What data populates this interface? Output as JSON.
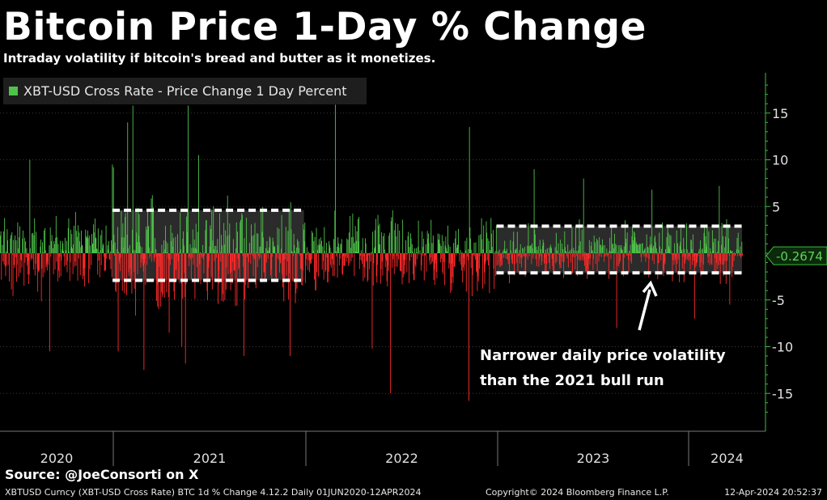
{
  "header": {
    "title": "Bitcoin Price 1-Day % Change",
    "subtitle": "Intraday volatility if bitcoin's bread and butter as it monetizes."
  },
  "chart_data": {
    "type": "bar",
    "series": [
      {
        "name": "XBT-USD Cross Rate - Price Change 1 Day Percent",
        "x_range": [
          "2020-06-01",
          "2024-04-12"
        ],
        "last_value": -0.2674,
        "notable_values": [
          {
            "date": "2020-07-27",
            "value": 10.0
          },
          {
            "date": "2020-09-03",
            "value": -10.5
          },
          {
            "date": "2020-12-31",
            "value": 9.5
          },
          {
            "date": "2021-01-02",
            "value": 9.2
          },
          {
            "date": "2021-01-11",
            "value": -10.5
          },
          {
            "date": "2021-01-29",
            "value": 14.0
          },
          {
            "date": "2021-02-08",
            "value": 15.8
          },
          {
            "date": "2021-03-01",
            "value": -12.5
          },
          {
            "date": "2021-04-18",
            "value": -8.5
          },
          {
            "date": "2021-05-12",
            "value": -10.0
          },
          {
            "date": "2021-05-19",
            "value": -11.8
          },
          {
            "date": "2021-05-24",
            "value": 15.8
          },
          {
            "date": "2021-06-13",
            "value": 10.5
          },
          {
            "date": "2021-09-07",
            "value": -11.0
          },
          {
            "date": "2021-12-04",
            "value": -11.0
          },
          {
            "date": "2022-02-28",
            "value": 15.9
          },
          {
            "date": "2022-05-09",
            "value": -10.2
          },
          {
            "date": "2022-06-13",
            "value": -15.0
          },
          {
            "date": "2022-11-09",
            "value": -15.8
          },
          {
            "date": "2022-11-10",
            "value": 13.5
          },
          {
            "date": "2023-03-13",
            "value": 9.0
          },
          {
            "date": "2023-06-15",
            "value": 8.0
          },
          {
            "date": "2023-08-17",
            "value": -8.0
          },
          {
            "date": "2023-10-23",
            "value": 6.8
          },
          {
            "date": "2024-01-12",
            "value": -7.0
          },
          {
            "date": "2024-02-28",
            "value": 7.2
          },
          {
            "date": "2024-03-19",
            "value": -5.5
          }
        ]
      }
    ],
    "categories": [
      "2020",
      "2021",
      "2022",
      "2023",
      "2024"
    ],
    "y_ticks": [
      "15",
      "10",
      "5",
      "-5",
      "-10",
      "-15"
    ],
    "ylim": [
      -18,
      19
    ],
    "bands": [
      {
        "from": "2021-01-01",
        "to": "2021-12-31",
        "upper": 4.6,
        "lower": -2.9
      },
      {
        "from": "2023-01-01",
        "to": "2024-04-12",
        "upper": 2.9,
        "lower": -2.1
      }
    ],
    "annotation": {
      "line1": "Narrower daily price volatility",
      "line2": "than the 2021 bull run"
    },
    "current_value_label": "-0.2674",
    "colors": {
      "positive": "#4fc24b",
      "negative": "#ff2a2a",
      "band": "#2b2b2b",
      "axis": "#3dbd3d"
    },
    "legend_position": "top-left"
  },
  "footer": {
    "source": "Source: @JoeConsorti on X",
    "left": "XBTUSD Curncy (XBT-USD Cross Rate) BTC 1d % Change 4.12.2  Daily 01JUN2020-12APR2024",
    "copyright": "Copyright© 2024 Bloomberg Finance L.P.",
    "timestamp": "12-Apr-2024 20:52:37"
  }
}
